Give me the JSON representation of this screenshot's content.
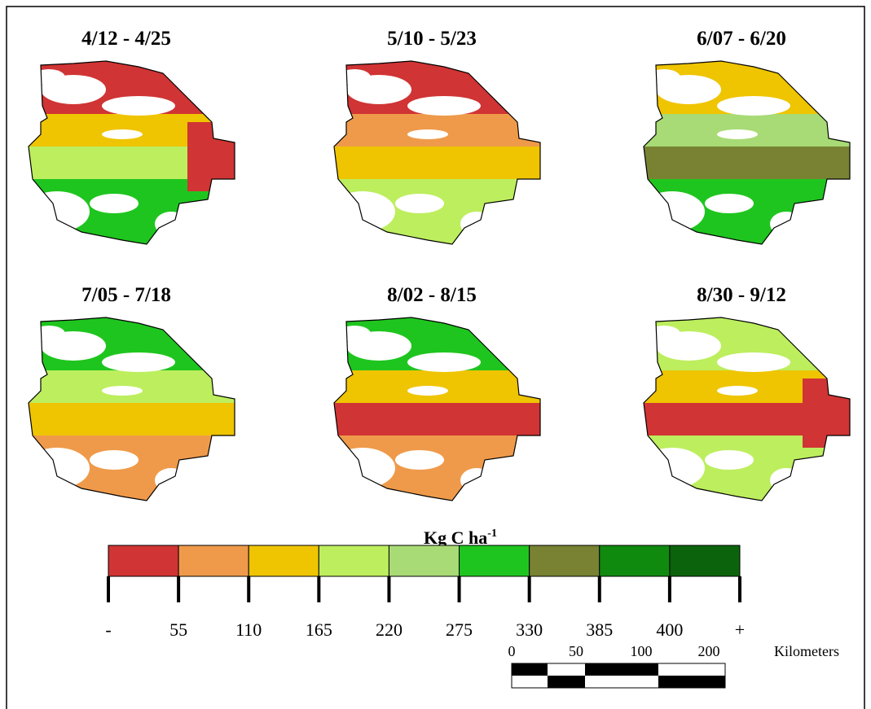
{
  "panels": [
    {
      "title": "4/12 - 4/25"
    },
    {
      "title": "5/10 - 5/23"
    },
    {
      "title": "6/07 - 6/20"
    },
    {
      "title": "7/05 - 7/18"
    },
    {
      "title": "8/02 - 8/15"
    },
    {
      "title": "8/30 - 9/12"
    }
  ],
  "legend": {
    "title": "Kg C ha",
    "title_sup": "-1",
    "colors": [
      "#d03434",
      "#ef9a4a",
      "#efc400",
      "#bdee5e",
      "#a8db75",
      "#1fc51f",
      "#788232",
      "#0f8a0f",
      "#0b640b"
    ],
    "labels": [
      "-",
      "55",
      "110",
      "165",
      "220",
      "275",
      "330",
      "385",
      "400",
      "+"
    ]
  },
  "scale_bar": {
    "labels": [
      "0",
      "50",
      "100",
      "200"
    ],
    "unit": "Kilometers"
  }
}
